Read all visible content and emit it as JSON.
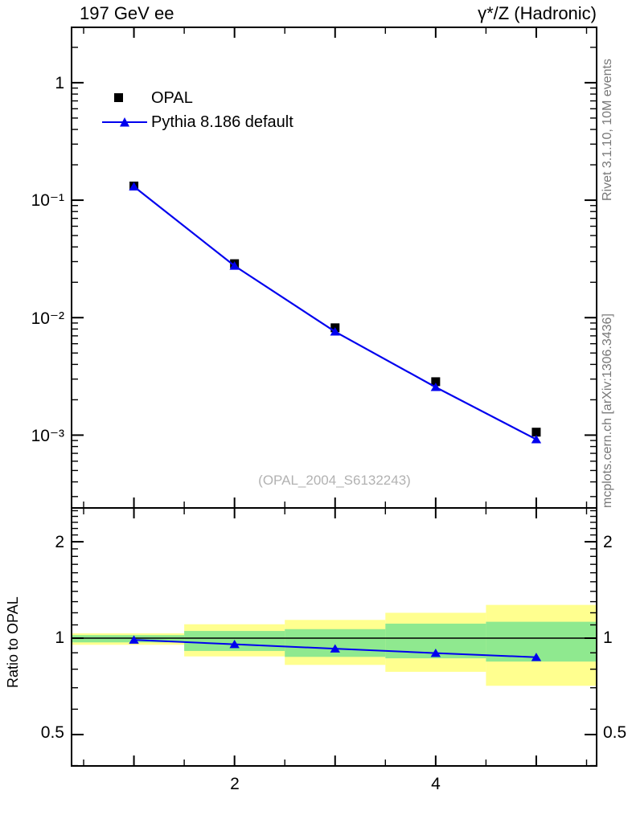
{
  "header": {
    "title_left": "197 GeV ee",
    "title_right": "γ*/Z (Hadronic)"
  },
  "legend": {
    "items": [
      {
        "label": "OPAL",
        "marker": "black-square"
      },
      {
        "label": "Pythia 8.186 default",
        "marker": "blue-line-triangle"
      }
    ]
  },
  "watermark": "(OPAL_2004_S6132243)",
  "side_notes": {
    "top": "Rivet 3.1.10,  10M events",
    "bottom": "mcplots.cern.ch [arXiv:1306.3436]"
  },
  "axes": {
    "main_y_labels": [
      "1",
      "10⁻¹",
      "10⁻²",
      "10⁻³"
    ],
    "ratio_y_labels": [
      "2",
      "1",
      "0.5"
    ],
    "x_tick_labels": [
      "2",
      "4"
    ],
    "ratio_axis_title": "Ratio to OPAL"
  },
  "colors": {
    "opal": "#000000",
    "pythia": "#0000ee",
    "band_yellow": "#ffff8f",
    "band_green": "#8fe98f",
    "frame": "#000000",
    "note_gray": "#787878",
    "watermark_gray": "#b2b2b2"
  },
  "chart_data": [
    {
      "type": "line",
      "panel": "main",
      "yscale": "log",
      "x": [
        1,
        2,
        3,
        4,
        5
      ],
      "xlim": [
        0.38,
        5.6
      ],
      "ylim": [
        0.00024,
        2.96
      ],
      "x_labeled_ticks": [
        2,
        4
      ],
      "y_labeled_ticks": [
        1,
        0.1,
        0.01,
        0.001
      ],
      "series": [
        {
          "name": "OPAL",
          "marker": "square",
          "color": "#000000",
          "line": false,
          "values": [
            0.132,
            0.0288,
            0.0082,
            0.00285,
            0.00106
          ]
        },
        {
          "name": "Pythia 8.186 default",
          "marker": "triangle",
          "color": "#0000ee",
          "line": true,
          "values": [
            0.1305,
            0.0276,
            0.0076,
            0.00256,
            0.00092
          ]
        }
      ]
    },
    {
      "type": "ratio",
      "panel": "ratio",
      "ylabel": "Ratio to OPAL",
      "yscale": "log",
      "x": [
        1,
        2,
        3,
        4,
        5
      ],
      "values": [
        0.988,
        0.957,
        0.927,
        0.898,
        0.872
      ],
      "xlim": [
        0.38,
        5.6
      ],
      "ylim": [
        0.399,
        2.55
      ],
      "y_labeled_ticks": [
        2,
        1,
        0.5
      ],
      "reference": 1,
      "bands": [
        {
          "x": [
            0.38,
            1.5
          ],
          "green": [
            0.97,
            1.022
          ],
          "yellow": [
            0.953,
            1.035
          ]
        },
        {
          "x": [
            1.5,
            2.5
          ],
          "green": [
            0.912,
            1.053
          ],
          "yellow": [
            0.877,
            1.105
          ]
        },
        {
          "x": [
            2.5,
            3.5
          ],
          "green": [
            0.874,
            1.067
          ],
          "yellow": [
            0.825,
            1.14
          ]
        },
        {
          "x": [
            3.5,
            4.5
          ],
          "green": [
            0.865,
            1.11
          ],
          "yellow": [
            0.785,
            1.2
          ]
        },
        {
          "x": [
            4.5,
            5.6
          ],
          "green": [
            0.845,
            1.125
          ],
          "yellow": [
            0.71,
            1.27
          ]
        }
      ]
    }
  ]
}
